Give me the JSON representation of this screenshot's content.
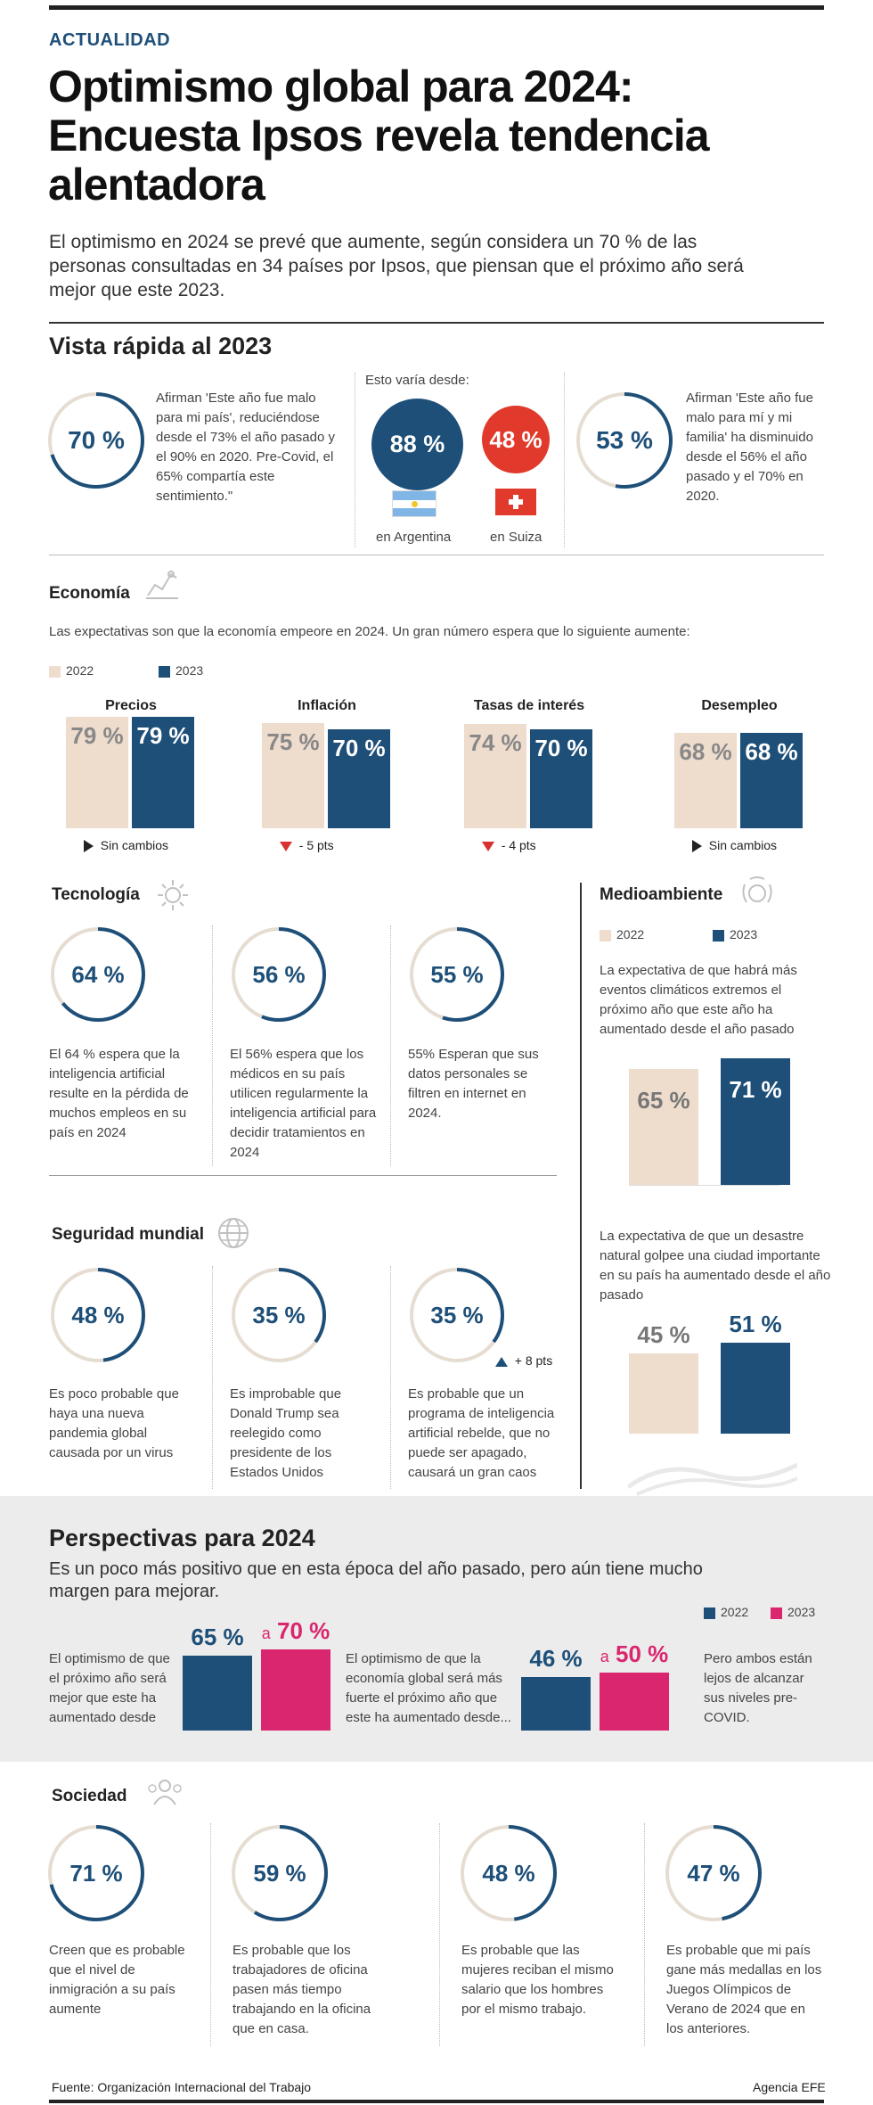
{
  "header": {
    "kicker": "ACTUALIDAD",
    "title_lines": [
      "Optimismo global para 2024:",
      "Encuesta Ipsos revela tendencia",
      "alentadora"
    ],
    "intro": "El optimismo en 2024 se prevé que aumente, según considera un 70 % de las personas consultadas en 34 países por Ipsos, que piensan que el próximo año será mejor que este 2023."
  },
  "vista": {
    "title": "Vista rápida al 2023",
    "left": {
      "pct": "70 %",
      "value": 70,
      "text": "Afirman 'Este año fue malo para mi país', reduciéndose desde el 73% el año pasado y el 90% en 2020. Pre-Covid, el 65% compartía este sentimiento.\""
    },
    "varia_label": "Esto varía desde:",
    "argentina": {
      "pct": "88 %",
      "label": "en Argentina"
    },
    "suiza": {
      "pct": "48 %",
      "label": "en Suiza"
    },
    "right": {
      "pct": "53 %",
      "value": 53,
      "text": "Afirman 'Este año fue malo para mí y mi familia' ha disminuido desde el 56% el año pasado y el 70% en 2020."
    }
  },
  "economia": {
    "title": "Economía",
    "subtitle": "Las expectativas son que la economía empeore en 2024. Un gran número espera que lo siguiente aumente:",
    "legend": [
      "2022",
      "2023"
    ],
    "groups": [
      {
        "name": "Precios",
        "v2022": 79,
        "v2023": 79,
        "l2022": "79 %",
        "l2023": "79 %",
        "change": "Sin cambios",
        "dir": "none"
      },
      {
        "name": "Inflación",
        "v2022": 75,
        "v2023": 70,
        "l2022": "75 %",
        "l2023": "70 %",
        "change": "-  5 pts",
        "dir": "down"
      },
      {
        "name": "Tasas de interés",
        "v2022": 74,
        "v2023": 70,
        "l2022": "74 %",
        "l2023": "70 %",
        "change": "-  4 pts",
        "dir": "down"
      },
      {
        "name": "Desempleo",
        "v2022": 68,
        "v2023": 68,
        "l2022": "68 %",
        "l2023": "68 %",
        "change": "Sin cambios",
        "dir": "none"
      }
    ]
  },
  "tecnologia": {
    "title": "Tecnología",
    "items": [
      {
        "pct": "64 %",
        "value": 64,
        "text": "El 64 % espera que la inteligencia artificial resulte en la pérdida de muchos empleos en su país en 2024"
      },
      {
        "pct": "56 %",
        "value": 56,
        "text": "El 56% espera que los médicos en su país utilicen regularmente la inteligencia artificial para decidir tratamientos en 2024"
      },
      {
        "pct": "55 %",
        "value": 55,
        "text": "55% Esperan que sus datos personales se filtren en internet en 2024."
      }
    ]
  },
  "medioambiente": {
    "title": "Medioambiente",
    "legend": [
      "2022",
      "2023"
    ],
    "text1": "La expectativa de que habrá más eventos climáticos extremos el próximo año que este año ha aumentado desde el año pasado",
    "chart1": {
      "v2022": 65,
      "v2023": 71,
      "l2022": "65 %",
      "l2023": "71 %"
    },
    "text2": "La expectativa de que un desastre natural golpee una ciudad importante en su país ha aumentado desde el año pasado",
    "chart2": {
      "v2022": 45,
      "v2023": 51,
      "l2022": "45 %",
      "l2023": "51 %"
    }
  },
  "seguridad": {
    "title": "Seguridad mundial",
    "items": [
      {
        "pct": "48 %",
        "value": 48,
        "text": "Es poco probable que haya una nueva pandemia global causada por un virus"
      },
      {
        "pct": "35 %",
        "value": 35,
        "text": "Es improbable que Donald Trump sea reelegido como presidente de los Estados Unidos"
      },
      {
        "pct": "35 %",
        "value": 35,
        "text": "Es probable que un programa de inteligencia artificial rebelde, que no puede ser apagado, causará un gran caos",
        "change": "+ 8 pts"
      }
    ]
  },
  "perspectivas": {
    "title": "Perspectivas para 2024",
    "subtitle": "Es un poco más positivo que en esta época del año pasado, pero aún tiene mucho margen para mejorar.",
    "legend": [
      "2022",
      "2023"
    ],
    "text1": "El optimismo de que el próximo año será mejor que este ha aumentado desde",
    "chart1": {
      "v2022": 65,
      "v2023": 70,
      "l2022": "65 %",
      "prefix": "a",
      "l2023": "70 %"
    },
    "text2": "El optimismo de que la economía global será más fuerte el próximo año que este ha aumentado desde...",
    "chart2": {
      "v2022": 46,
      "v2023": 50,
      "l2022": "46 %",
      "prefix": "a",
      "l2023": "50 %"
    },
    "text3": "Pero ambos están lejos de alcanzar sus niveles pre-COVID."
  },
  "sociedad": {
    "title": "Sociedad",
    "items": [
      {
        "pct": "71 %",
        "value": 71,
        "text": "Creen que es probable que el nivel de inmigración a su país aumente"
      },
      {
        "pct": "59 %",
        "value": 59,
        "text": "Es probable que los trabajadores de oficina pasen más tiempo trabajando en la oficina que en casa."
      },
      {
        "pct": "48 %",
        "value": 48,
        "text": "Es probable que las mujeres reciban el mismo salario que los hombres por el mismo trabajo."
      },
      {
        "pct": "47 %",
        "value": 47,
        "text": "Es  probable que mi país gane más medallas en los Juegos Olímpicos de Verano de 2024 que en los anteriores."
      }
    ]
  },
  "footer": {
    "source": "Fuente: Organización Internacional del Trabajo",
    "agency": "Agencia EFE"
  },
  "colors": {
    "navy": "#1e4f78",
    "beige": "#eedccd",
    "red": "#e13a2c",
    "magenta": "#d9266e",
    "grey_band": "#ececec"
  },
  "chart_data": [
    {
      "type": "bar",
      "title": "Economía",
      "categories": [
        "Precios",
        "Inflación",
        "Tasas de interés",
        "Desempleo"
      ],
      "series": [
        {
          "name": "2022",
          "values": [
            79,
            75,
            74,
            68
          ]
        },
        {
          "name": "2023",
          "values": [
            79,
            70,
            70,
            68
          ]
        }
      ]
    },
    {
      "type": "bar",
      "title": "Medioambiente",
      "categories": [
        "Eventos climáticos extremos",
        "Desastre natural"
      ],
      "series": [
        {
          "name": "2022",
          "values": [
            65,
            45
          ]
        },
        {
          "name": "2023",
          "values": [
            71,
            51
          ]
        }
      ]
    },
    {
      "type": "bar",
      "title": "Perspectivas para 2024",
      "categories": [
        "Próximo año mejor",
        "Economía global más fuerte"
      ],
      "series": [
        {
          "name": "2022",
          "values": [
            65,
            46
          ]
        },
        {
          "name": "2023",
          "values": [
            70,
            50
          ]
        }
      ]
    }
  ]
}
